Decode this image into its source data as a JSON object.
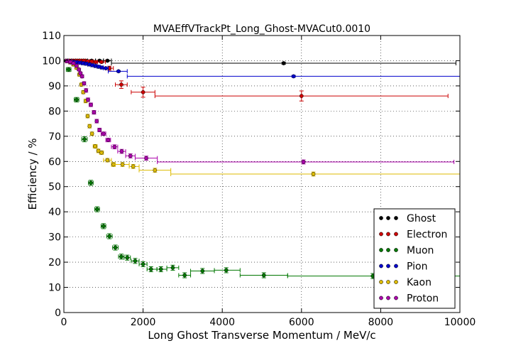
{
  "chart_data": {
    "type": "scatter",
    "title": "MVAEffVTrackPt_Long_Ghost-MVACut0.0010",
    "xlabel": "Long Ghost Transverse Momentum / MeV/c",
    "ylabel": "Efficiency / %",
    "xlim": [
      0,
      10000
    ],
    "ylim": [
      0,
      110
    ],
    "xticks": [
      0,
      2000,
      4000,
      6000,
      8000,
      10000
    ],
    "yticks": [
      0,
      10,
      20,
      30,
      40,
      50,
      60,
      70,
      80,
      90,
      100,
      110
    ],
    "grid": true,
    "legend_position": "bottom-right",
    "series": [
      {
        "name": "Ghost",
        "color": "#000000",
        "points": [
          {
            "x": 50,
            "y": 100,
            "xlo": 0,
            "xhi": 100,
            "e": 0.3
          },
          {
            "x": 150,
            "y": 100,
            "xlo": 100,
            "xhi": 200,
            "e": 0.3
          },
          {
            "x": 250,
            "y": 100,
            "xlo": 200,
            "xhi": 300,
            "e": 0.3
          },
          {
            "x": 350,
            "y": 100,
            "xlo": 300,
            "xhi": 400,
            "e": 0.3
          },
          {
            "x": 450,
            "y": 100,
            "xlo": 400,
            "xhi": 500,
            "e": 0.3
          },
          {
            "x": 550,
            "y": 100,
            "xlo": 500,
            "xhi": 600,
            "e": 0.3
          },
          {
            "x": 700,
            "y": 100,
            "xlo": 600,
            "xhi": 800,
            "e": 0.3
          },
          {
            "x": 900,
            "y": 100,
            "xlo": 800,
            "xhi": 1000,
            "e": 0.3
          },
          {
            "x": 1100,
            "y": 100,
            "xlo": 1000,
            "xhi": 1200,
            "e": 0.3
          },
          {
            "x": 5550,
            "y": 99,
            "xlo": 1200,
            "xhi": 9900,
            "e": 0.4
          }
        ]
      },
      {
        "name": "Electron",
        "color": "#cc0000",
        "points": [
          {
            "x": 100,
            "y": 100,
            "xlo": 50,
            "xhi": 150,
            "e": 0.3
          },
          {
            "x": 200,
            "y": 100,
            "xlo": 150,
            "xhi": 250,
            "e": 0.3
          },
          {
            "x": 300,
            "y": 100,
            "xlo": 250,
            "xhi": 350,
            "e": 0.3
          },
          {
            "x": 400,
            "y": 100,
            "xlo": 350,
            "xhi": 450,
            "e": 0.3
          },
          {
            "x": 500,
            "y": 100,
            "xlo": 450,
            "xhi": 550,
            "e": 0.3
          },
          {
            "x": 600,
            "y": 99.8,
            "xlo": 550,
            "xhi": 650,
            "e": 0.3
          },
          {
            "x": 700,
            "y": 99.7,
            "xlo": 650,
            "xhi": 750,
            "e": 0.3
          },
          {
            "x": 800,
            "y": 99.5,
            "xlo": 750,
            "xhi": 850,
            "e": 0.4
          },
          {
            "x": 950,
            "y": 99.5,
            "xlo": 850,
            "xhi": 1050,
            "e": 0.4
          },
          {
            "x": 1150,
            "y": 97,
            "xlo": 1050,
            "xhi": 1250,
            "e": 0.8
          },
          {
            "x": 1450,
            "y": 90.5,
            "xlo": 1300,
            "xhi": 1600,
            "e": 1.5
          },
          {
            "x": 2000,
            "y": 87.5,
            "xlo": 1700,
            "xhi": 2300,
            "e": 2.0
          },
          {
            "x": 6000,
            "y": 86,
            "xlo": 2300,
            "xhi": 9700,
            "e": 2.0
          }
        ]
      },
      {
        "name": "Muon",
        "color": "#007700",
        "points": [
          {
            "x": 120,
            "y": 96.5,
            "xlo": 60,
            "xhi": 180,
            "e": 0.8
          },
          {
            "x": 320,
            "y": 84.5,
            "xlo": 260,
            "xhi": 380,
            "e": 0.9
          },
          {
            "x": 520,
            "y": 68.8,
            "xlo": 450,
            "xhi": 590,
            "e": 1.0
          },
          {
            "x": 680,
            "y": 51.5,
            "xlo": 620,
            "xhi": 740,
            "e": 1.0
          },
          {
            "x": 840,
            "y": 41,
            "xlo": 780,
            "xhi": 900,
            "e": 1.0
          },
          {
            "x": 1000,
            "y": 34.3,
            "xlo": 940,
            "xhi": 1060,
            "e": 1.0
          },
          {
            "x": 1150,
            "y": 30.3,
            "xlo": 1080,
            "xhi": 1220,
            "e": 1.0
          },
          {
            "x": 1300,
            "y": 25.8,
            "xlo": 1230,
            "xhi": 1370,
            "e": 1.0
          },
          {
            "x": 1450,
            "y": 22.2,
            "xlo": 1380,
            "xhi": 1520,
            "e": 1.0
          },
          {
            "x": 1600,
            "y": 21.8,
            "xlo": 1520,
            "xhi": 1680,
            "e": 1.0
          },
          {
            "x": 1800,
            "y": 20.5,
            "xlo": 1700,
            "xhi": 1900,
            "e": 1.0
          },
          {
            "x": 2000,
            "y": 19.2,
            "xlo": 1900,
            "xhi": 2100,
            "e": 1.0
          },
          {
            "x": 2200,
            "y": 17.2,
            "xlo": 2100,
            "xhi": 2350,
            "e": 1.0
          },
          {
            "x": 2450,
            "y": 17.2,
            "xlo": 2350,
            "xhi": 2600,
            "e": 1.0
          },
          {
            "x": 2750,
            "y": 17.8,
            "xlo": 2600,
            "xhi": 2900,
            "e": 1.0
          },
          {
            "x": 3050,
            "y": 14.8,
            "xlo": 2900,
            "xhi": 3200,
            "e": 1.0
          },
          {
            "x": 3500,
            "y": 16.5,
            "xlo": 3200,
            "xhi": 3800,
            "e": 1.0
          },
          {
            "x": 4100,
            "y": 16.8,
            "xlo": 3800,
            "xhi": 4450,
            "e": 1.0
          },
          {
            "x": 5050,
            "y": 14.8,
            "xlo": 4450,
            "xhi": 5650,
            "e": 1.0
          },
          {
            "x": 7800,
            "y": 14.5,
            "xlo": 5650,
            "xhi": 10000,
            "e": 1.0
          }
        ]
      },
      {
        "name": "Pion",
        "color": "#0000cc",
        "points": [
          {
            "x": 80,
            "y": 99.9,
            "xlo": 40,
            "xhi": 120,
            "e": 0.2
          },
          {
            "x": 160,
            "y": 99.7,
            "xlo": 120,
            "xhi": 200,
            "e": 0.2
          },
          {
            "x": 240,
            "y": 99.5,
            "xlo": 200,
            "xhi": 280,
            "e": 0.2
          },
          {
            "x": 320,
            "y": 99.4,
            "xlo": 280,
            "xhi": 360,
            "e": 0.2
          },
          {
            "x": 400,
            "y": 99.2,
            "xlo": 360,
            "xhi": 440,
            "e": 0.2
          },
          {
            "x": 480,
            "y": 99.0,
            "xlo": 440,
            "xhi": 520,
            "e": 0.2
          },
          {
            "x": 560,
            "y": 98.8,
            "xlo": 520,
            "xhi": 600,
            "e": 0.2
          },
          {
            "x": 640,
            "y": 98.5,
            "xlo": 600,
            "xhi": 680,
            "e": 0.2
          },
          {
            "x": 720,
            "y": 98.2,
            "xlo": 680,
            "xhi": 760,
            "e": 0.2
          },
          {
            "x": 800,
            "y": 97.9,
            "xlo": 760,
            "xhi": 840,
            "e": 0.2
          },
          {
            "x": 880,
            "y": 97.6,
            "xlo": 840,
            "xhi": 920,
            "e": 0.2
          },
          {
            "x": 960,
            "y": 97.3,
            "xlo": 920,
            "xhi": 1000,
            "e": 0.2
          },
          {
            "x": 1060,
            "y": 97.0,
            "xlo": 1000,
            "xhi": 1120,
            "e": 0.2
          },
          {
            "x": 1380,
            "y": 95.8,
            "xlo": 1120,
            "xhi": 1600,
            "e": 0.3
          },
          {
            "x": 5800,
            "y": 93.8,
            "xlo": 1600,
            "xhi": 10000,
            "e": 0.4
          }
        ]
      },
      {
        "name": "Kaon",
        "color": "#ddbb00",
        "points": [
          {
            "x": 80,
            "y": 99.8,
            "xlo": 40,
            "xhi": 120,
            "e": 0.3
          },
          {
            "x": 160,
            "y": 99.3,
            "xlo": 120,
            "xhi": 200,
            "e": 0.3
          },
          {
            "x": 240,
            "y": 98.5,
            "xlo": 200,
            "xhi": 280,
            "e": 0.4
          },
          {
            "x": 320,
            "y": 97.2,
            "xlo": 280,
            "xhi": 360,
            "e": 0.5
          },
          {
            "x": 390,
            "y": 94.5,
            "xlo": 360,
            "xhi": 420,
            "e": 0.6
          },
          {
            "x": 440,
            "y": 90.5,
            "xlo": 420,
            "xhi": 460,
            "e": 0.6
          },
          {
            "x": 490,
            "y": 87.5,
            "xlo": 460,
            "xhi": 520,
            "e": 0.6
          },
          {
            "x": 550,
            "y": 84.0,
            "xlo": 520,
            "xhi": 580,
            "e": 0.7
          },
          {
            "x": 600,
            "y": 78.0,
            "xlo": 580,
            "xhi": 620,
            "e": 0.7
          },
          {
            "x": 650,
            "y": 74.0,
            "xlo": 620,
            "xhi": 680,
            "e": 0.7
          },
          {
            "x": 710,
            "y": 71.0,
            "xlo": 680,
            "xhi": 740,
            "e": 0.7
          },
          {
            "x": 790,
            "y": 66.0,
            "xlo": 740,
            "xhi": 840,
            "e": 0.7
          },
          {
            "x": 870,
            "y": 64.2,
            "xlo": 840,
            "xhi": 900,
            "e": 0.7
          },
          {
            "x": 950,
            "y": 63.5,
            "xlo": 900,
            "xhi": 1000,
            "e": 0.7
          },
          {
            "x": 1100,
            "y": 60.5,
            "xlo": 1000,
            "xhi": 1200,
            "e": 0.7
          },
          {
            "x": 1250,
            "y": 58.8,
            "xlo": 1200,
            "xhi": 1300,
            "e": 0.8
          },
          {
            "x": 1480,
            "y": 58.8,
            "xlo": 1300,
            "xhi": 1650,
            "e": 0.8
          },
          {
            "x": 1750,
            "y": 58.0,
            "xlo": 1650,
            "xhi": 1900,
            "e": 0.8
          },
          {
            "x": 2300,
            "y": 56.5,
            "xlo": 1900,
            "xhi": 2700,
            "e": 0.8
          },
          {
            "x": 6300,
            "y": 55.0,
            "xlo": 2700,
            "xhi": 10000,
            "e": 0.8
          }
        ]
      },
      {
        "name": "Proton",
        "color": "#aa00aa",
        "points": [
          {
            "x": 80,
            "y": 99.8,
            "xlo": 40,
            "xhi": 120,
            "e": 0.3
          },
          {
            "x": 160,
            "y": 99.5,
            "xlo": 120,
            "xhi": 200,
            "e": 0.3
          },
          {
            "x": 240,
            "y": 99.0,
            "xlo": 200,
            "xhi": 280,
            "e": 0.4
          },
          {
            "x": 320,
            "y": 98.0,
            "xlo": 280,
            "xhi": 360,
            "e": 0.5
          },
          {
            "x": 380,
            "y": 96.5,
            "xlo": 360,
            "xhi": 400,
            "e": 0.5
          },
          {
            "x": 420,
            "y": 95.0,
            "xlo": 400,
            "xhi": 440,
            "e": 0.5
          },
          {
            "x": 460,
            "y": 93.8,
            "xlo": 440,
            "xhi": 480,
            "e": 0.6
          },
          {
            "x": 510,
            "y": 91.0,
            "xlo": 480,
            "xhi": 540,
            "e": 0.6
          },
          {
            "x": 560,
            "y": 88.2,
            "xlo": 540,
            "xhi": 580,
            "e": 0.7
          },
          {
            "x": 610,
            "y": 84.5,
            "xlo": 580,
            "xhi": 640,
            "e": 0.7
          },
          {
            "x": 680,
            "y": 82.5,
            "xlo": 640,
            "xhi": 720,
            "e": 0.7
          },
          {
            "x": 760,
            "y": 79.5,
            "xlo": 720,
            "xhi": 800,
            "e": 0.7
          },
          {
            "x": 830,
            "y": 76.0,
            "xlo": 800,
            "xhi": 860,
            "e": 0.7
          },
          {
            "x": 900,
            "y": 72.5,
            "xlo": 860,
            "xhi": 940,
            "e": 0.7
          },
          {
            "x": 1000,
            "y": 71.0,
            "xlo": 940,
            "xhi": 1060,
            "e": 0.7
          },
          {
            "x": 1120,
            "y": 68.5,
            "xlo": 1060,
            "xhi": 1180,
            "e": 0.7
          },
          {
            "x": 1280,
            "y": 65.8,
            "xlo": 1200,
            "xhi": 1360,
            "e": 0.8
          },
          {
            "x": 1460,
            "y": 64.0,
            "xlo": 1360,
            "xhi": 1560,
            "e": 0.8
          },
          {
            "x": 1680,
            "y": 62.2,
            "xlo": 1560,
            "xhi": 1800,
            "e": 0.8
          },
          {
            "x": 2080,
            "y": 61.3,
            "xlo": 1800,
            "xhi": 2360,
            "e": 0.8
          },
          {
            "x": 6050,
            "y": 59.8,
            "xlo": 2360,
            "xhi": 9850,
            "e": 0.8
          }
        ]
      }
    ]
  }
}
